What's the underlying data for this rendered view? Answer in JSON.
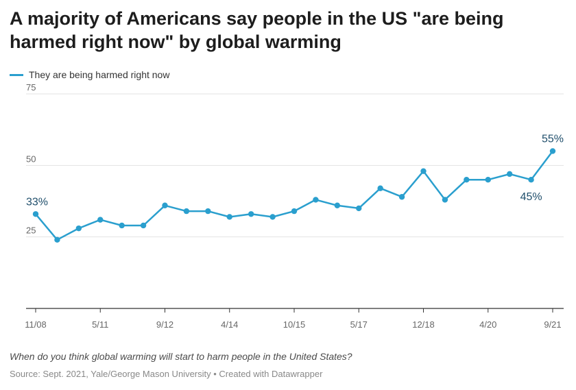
{
  "title": "A majority of Americans say people in the US \"are being harmed right now\" by global warming",
  "note": "When do you think global warming will start to harm people in the United States?",
  "source": "Source: Sept. 2021, Yale/George Mason University • Created with Datawrapper",
  "colors": {
    "series": "#2a9fce",
    "grid": "#e3e3e3",
    "axis": "#333333",
    "label": "#1f4e6b"
  },
  "chart_data": {
    "type": "line",
    "title": "A majority of Americans say people in the US \"are being harmed right now\" by global warming",
    "xlabel": "",
    "ylabel": "",
    "ylim": [
      0,
      75
    ],
    "yticks": [
      25,
      50,
      75
    ],
    "x_tick_labels": [
      "11/08",
      "5/11",
      "9/12",
      "4/14",
      "10/15",
      "5/17",
      "12/18",
      "4/20",
      "9/21"
    ],
    "x_tick_indices": [
      0,
      3,
      6,
      9,
      12,
      15,
      18,
      21,
      24
    ],
    "legend": "top-left",
    "series": [
      {
        "name": "They are being harmed right now",
        "values": [
          33,
          24,
          28,
          31,
          29,
          29,
          36,
          34,
          34,
          32,
          33,
          32,
          34,
          38,
          36,
          35,
          42,
          39,
          48,
          38,
          45,
          45,
          47,
          45,
          55
        ]
      }
    ],
    "annotations": [
      {
        "index": 0,
        "text": "33%",
        "placement": "above"
      },
      {
        "index": 23,
        "text": "45%",
        "placement": "below"
      },
      {
        "index": 24,
        "text": "55%",
        "placement": "above"
      }
    ]
  }
}
